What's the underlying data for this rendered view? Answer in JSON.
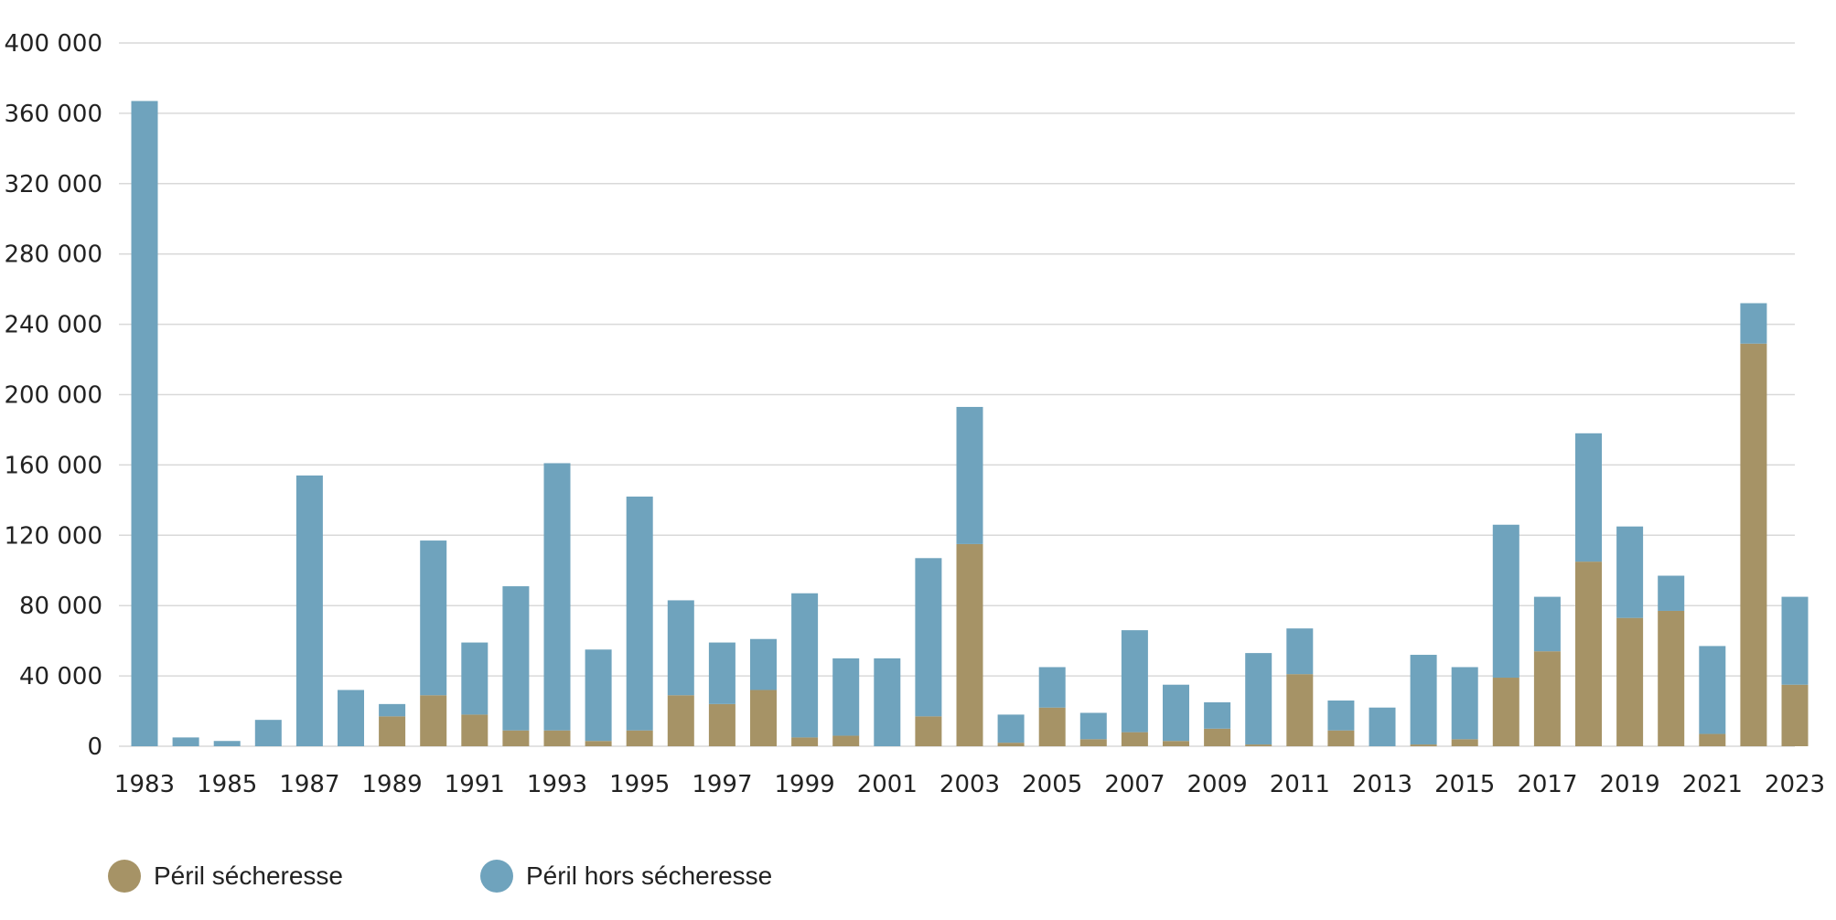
{
  "chart_data": {
    "type": "bar",
    "stacked": true,
    "title": "",
    "xlabel": "",
    "ylabel": "",
    "ylim": [
      0,
      400000
    ],
    "yticks": [
      0,
      40000,
      80000,
      120000,
      160000,
      200000,
      240000,
      280000,
      320000,
      360000,
      400000
    ],
    "ytick_labels": [
      "0",
      "40 000",
      "80 000",
      "120 000",
      "160 000",
      "200 000",
      "240 000",
      "280 000",
      "320 000",
      "360 000",
      "400 000"
    ],
    "grid": true,
    "legend_position": "bottom-left",
    "categories": [
      "1983",
      "1984",
      "1985",
      "1986",
      "1987",
      "1988",
      "1989",
      "1990",
      "1991",
      "1992",
      "1993",
      "1994",
      "1995",
      "1996",
      "1997",
      "1998",
      "1999",
      "2000",
      "2001",
      "2002",
      "2003",
      "2004",
      "2005",
      "2006",
      "2007",
      "2008",
      "2009",
      "2010",
      "2011",
      "2012",
      "2013",
      "2014",
      "2015",
      "2016",
      "2017",
      "2018",
      "2019",
      "2020",
      "2021",
      "2022",
      "2023"
    ],
    "xtick_labels": [
      "1983",
      "1985",
      "1987",
      "1989",
      "1991",
      "1993",
      "1995",
      "1997",
      "1999",
      "2001",
      "2003",
      "2005",
      "2007",
      "2009",
      "2011",
      "2013",
      "2015",
      "2017",
      "2019",
      "2021",
      "2023"
    ],
    "series": [
      {
        "name": "Péril sécheresse",
        "color": "#a69366",
        "values": [
          0,
          0,
          0,
          0,
          0,
          0,
          17000,
          29000,
          18000,
          9000,
          9000,
          3000,
          9000,
          29000,
          24000,
          32000,
          5000,
          6000,
          0,
          17000,
          115000,
          2000,
          22000,
          4000,
          8000,
          3000,
          10000,
          1000,
          41000,
          9000,
          0,
          1000,
          4000,
          39000,
          54000,
          105000,
          73000,
          77000,
          7000,
          229000,
          35000
        ]
      },
      {
        "name": "Péril hors sécheresse",
        "color": "#6fa3bd",
        "values": [
          367000,
          5000,
          3000,
          15000,
          154000,
          32000,
          7000,
          88000,
          41000,
          82000,
          152000,
          52000,
          133000,
          54000,
          35000,
          29000,
          82000,
          44000,
          50000,
          90000,
          78000,
          16000,
          23000,
          15000,
          58000,
          32000,
          15000,
          52000,
          26000,
          17000,
          22000,
          51000,
          41000,
          87000,
          31000,
          73000,
          52000,
          20000,
          50000,
          23000,
          50000
        ]
      }
    ]
  }
}
